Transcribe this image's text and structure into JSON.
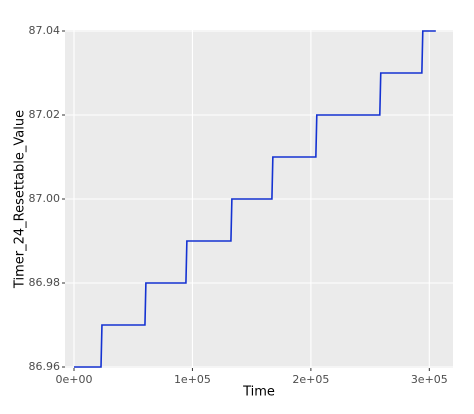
{
  "chart_data": {
    "type": "line",
    "x_label": "Time",
    "y_label": "Timer_24_Resettable_Value",
    "x": [
      0,
      22800,
      23600,
      59900,
      60700,
      94500,
      95300,
      132500,
      133300,
      167100,
      167900,
      204200,
      205000,
      258200,
      259000,
      293700,
      294500,
      305500
    ],
    "series": [
      {
        "color": "#1432d2",
        "values": [
          86.96,
          86.96,
          86.97,
          86.97,
          86.98,
          86.98,
          86.99,
          86.99,
          87.0,
          87.0,
          87.01,
          87.01,
          87.02,
          87.02,
          87.03,
          87.03,
          87.04,
          87.04
        ]
      }
    ],
    "xlim": [
      -7600,
      320000
    ],
    "ylim": [
      86.96,
      87.04
    ],
    "xticks": [
      {
        "value": 0,
        "label": "0e+00"
      },
      {
        "value": 100000,
        "label": "1e+05"
      },
      {
        "value": 200000,
        "label": "2e+05"
      },
      {
        "value": 300000,
        "label": "3e+05"
      }
    ],
    "yticks": [
      86.96,
      86.98,
      {
        "value": 87.0,
        "label": "87.00"
      },
      87.02,
      87.04
    ],
    "grid": true,
    "background": "#ebebeb"
  }
}
